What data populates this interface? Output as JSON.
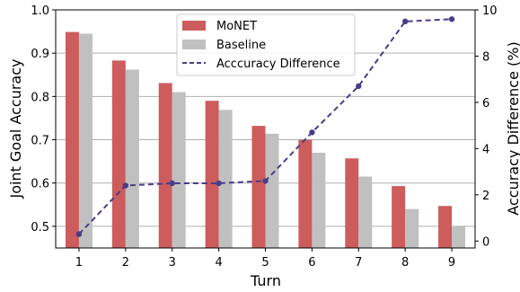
{
  "chart_data": {
    "type": "bar",
    "categories": [
      "1",
      "2",
      "3",
      "4",
      "5",
      "6",
      "7",
      "8",
      "9"
    ],
    "series": [
      {
        "name": "MoNET",
        "kind": "bar",
        "axis": "left",
        "color": "#cd5c5c",
        "values": [
          0.949,
          0.883,
          0.831,
          0.79,
          0.732,
          0.7,
          0.657,
          0.593,
          0.547
        ]
      },
      {
        "name": "Baseline",
        "kind": "bar",
        "axis": "left",
        "color": "#c0c0c0",
        "values": [
          0.945,
          0.862,
          0.81,
          0.769,
          0.714,
          0.67,
          0.615,
          0.54,
          0.5
        ]
      },
      {
        "name": "Acccuracy Difference",
        "kind": "line",
        "axis": "right",
        "color": "#483d8b",
        "values": [
          0.3,
          2.4,
          2.5,
          2.5,
          2.6,
          4.7,
          6.7,
          9.5,
          9.6
        ]
      }
    ],
    "xlabel": "Turn",
    "ylabel": "Joint Goal Accuracy",
    "y2label": "Accuracy Difference (%)",
    "ylim": [
      0.45,
      1.0
    ],
    "y2lim": [
      -0.3,
      10.0
    ],
    "yticks": [
      "0.5",
      "0.6",
      "0.7",
      "0.8",
      "0.9",
      "1.0"
    ],
    "y2ticks": [
      "0",
      "2",
      "4",
      "6",
      "8",
      "10"
    ],
    "grid": true,
    "legend": "top-center"
  }
}
